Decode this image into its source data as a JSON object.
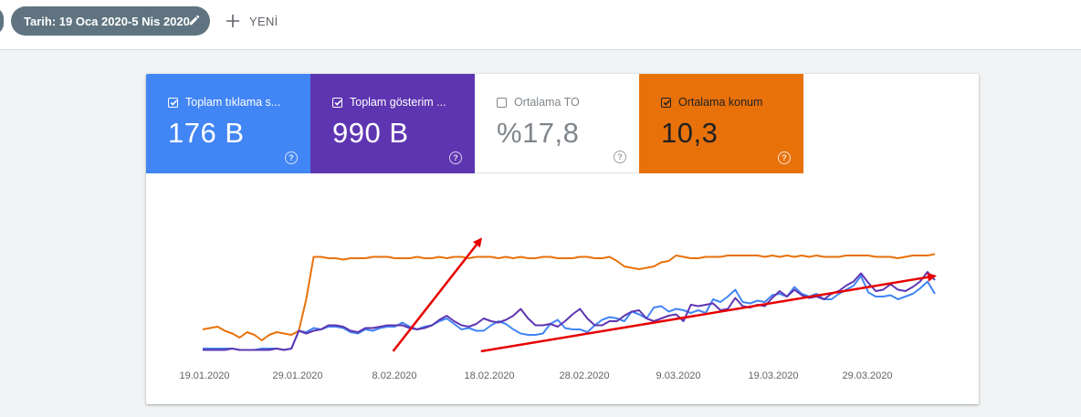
{
  "toolbar": {
    "date_filter": "Tarih: 19 Oca 2020-5 Nis 2020",
    "new_label": "YENİ"
  },
  "metrics": [
    {
      "label": "Toplam tıklama s...",
      "value": "176 B",
      "checked": true,
      "color": "#4285f4"
    },
    {
      "label": "Toplam gösterim ...",
      "value": "990 B",
      "checked": true,
      "color": "#5e35b1"
    },
    {
      "label": "Ortalama TO",
      "value": "%17,8",
      "checked": false,
      "color": "#ffffff"
    },
    {
      "label": "Ortalama konum",
      "value": "10,3",
      "checked": true,
      "color": "#e8710a"
    }
  ],
  "chart_data": {
    "type": "line",
    "x_ticks": [
      "19.01.2020",
      "29.01.2020",
      "8.02.2020",
      "18.02.2020",
      "28.02.2020",
      "9.03.2020",
      "19.03.2020",
      "29.03.2020"
    ],
    "series": [
      {
        "color": "#4285f4",
        "values": [
          0.02,
          0.02,
          0.02,
          0.02,
          0.02,
          0.01,
          0.01,
          0.01,
          0.02,
          0.02,
          0.02,
          0.01,
          0.02,
          0.15,
          0.14,
          0.17,
          0.16,
          0.18,
          0.18,
          0.17,
          0.14,
          0.13,
          0.16,
          0.15,
          0.17,
          0.18,
          0.18,
          0.21,
          0.18,
          0.16,
          0.18,
          0.19,
          0.22,
          0.24,
          0.2,
          0.16,
          0.17,
          0.15,
          0.15,
          0.19,
          0.22,
          0.2,
          0.16,
          0.13,
          0.12,
          0.12,
          0.13,
          0.2,
          0.23,
          0.17,
          0.16,
          0.16,
          0.14,
          0.19,
          0.23,
          0.25,
          0.24,
          0.22,
          0.29,
          0.27,
          0.24,
          0.32,
          0.33,
          0.29,
          0.31,
          0.3,
          0.28,
          0.3,
          0.28,
          0.38,
          0.36,
          0.4,
          0.45,
          0.36,
          0.35,
          0.37,
          0.36,
          0.41,
          0.42,
          0.4,
          0.47,
          0.42,
          0.4,
          0.42,
          0.38,
          0.38,
          0.42,
          0.45,
          0.48,
          0.55,
          0.43,
          0.4,
          0.4,
          0.41,
          0.38,
          0.4,
          0.42,
          0.46,
          0.51,
          0.42
        ]
      },
      {
        "color": "#5e35b1",
        "values": [
          0.01,
          0.01,
          0.01,
          0.01,
          0.02,
          0.01,
          0.01,
          0.01,
          0.01,
          0.01,
          0.02,
          0.01,
          0.02,
          0.15,
          0.13,
          0.15,
          0.16,
          0.19,
          0.19,
          0.18,
          0.15,
          0.14,
          0.17,
          0.17,
          0.18,
          0.19,
          0.19,
          0.19,
          0.17,
          0.16,
          0.17,
          0.19,
          0.23,
          0.26,
          0.22,
          0.19,
          0.18,
          0.2,
          0.24,
          0.22,
          0.21,
          0.23,
          0.26,
          0.31,
          0.24,
          0.19,
          0.19,
          0.2,
          0.18,
          0.22,
          0.27,
          0.31,
          0.24,
          0.19,
          0.19,
          0.22,
          0.22,
          0.26,
          0.29,
          0.3,
          0.24,
          0.22,
          0.24,
          0.26,
          0.27,
          0.22,
          0.34,
          0.33,
          0.34,
          0.35,
          0.3,
          0.31,
          0.39,
          0.33,
          0.32,
          0.34,
          0.33,
          0.39,
          0.44,
          0.4,
          0.45,
          0.41,
          0.39,
          0.4,
          0.38,
          0.42,
          0.44,
          0.48,
          0.51,
          0.57,
          0.5,
          0.44,
          0.45,
          0.49,
          0.45,
          0.44,
          0.47,
          0.51,
          0.58,
          0.52
        ]
      },
      {
        "color": "#e8710a",
        "values": [
          0.16,
          0.17,
          0.18,
          0.15,
          0.13,
          0.1,
          0.14,
          0.12,
          0.08,
          0.12,
          0.14,
          0.13,
          0.12,
          0.15,
          0.38,
          0.69,
          0.69,
          0.68,
          0.68,
          0.67,
          0.68,
          0.68,
          0.68,
          0.69,
          0.69,
          0.69,
          0.68,
          0.68,
          0.68,
          0.69,
          0.68,
          0.68,
          0.69,
          0.68,
          0.69,
          0.69,
          0.68,
          0.69,
          0.69,
          0.69,
          0.68,
          0.69,
          0.68,
          0.69,
          0.68,
          0.68,
          0.69,
          0.69,
          0.68,
          0.68,
          0.68,
          0.69,
          0.69,
          0.68,
          0.68,
          0.69,
          0.66,
          0.62,
          0.61,
          0.6,
          0.61,
          0.62,
          0.65,
          0.66,
          0.7,
          0.69,
          0.68,
          0.68,
          0.69,
          0.69,
          0.69,
          0.7,
          0.7,
          0.7,
          0.7,
          0.7,
          0.69,
          0.7,
          0.69,
          0.7,
          0.69,
          0.7,
          0.69,
          0.7,
          0.69,
          0.69,
          0.69,
          0.7,
          0.7,
          0.7,
          0.7,
          0.69,
          0.69,
          0.69,
          0.68,
          0.69,
          0.7,
          0.7,
          0.7,
          0.71
        ]
      }
    ],
    "annotations": [
      {
        "type": "arrow",
        "color": "#e60000",
        "from": [
          0.26,
          0.0
        ],
        "to": [
          0.38,
          0.82
        ]
      },
      {
        "type": "arrow",
        "color": "#e60000",
        "from": [
          0.38,
          0.0
        ],
        "to": [
          1.0,
          0.55
        ]
      }
    ],
    "grid": false,
    "legend": "none"
  }
}
